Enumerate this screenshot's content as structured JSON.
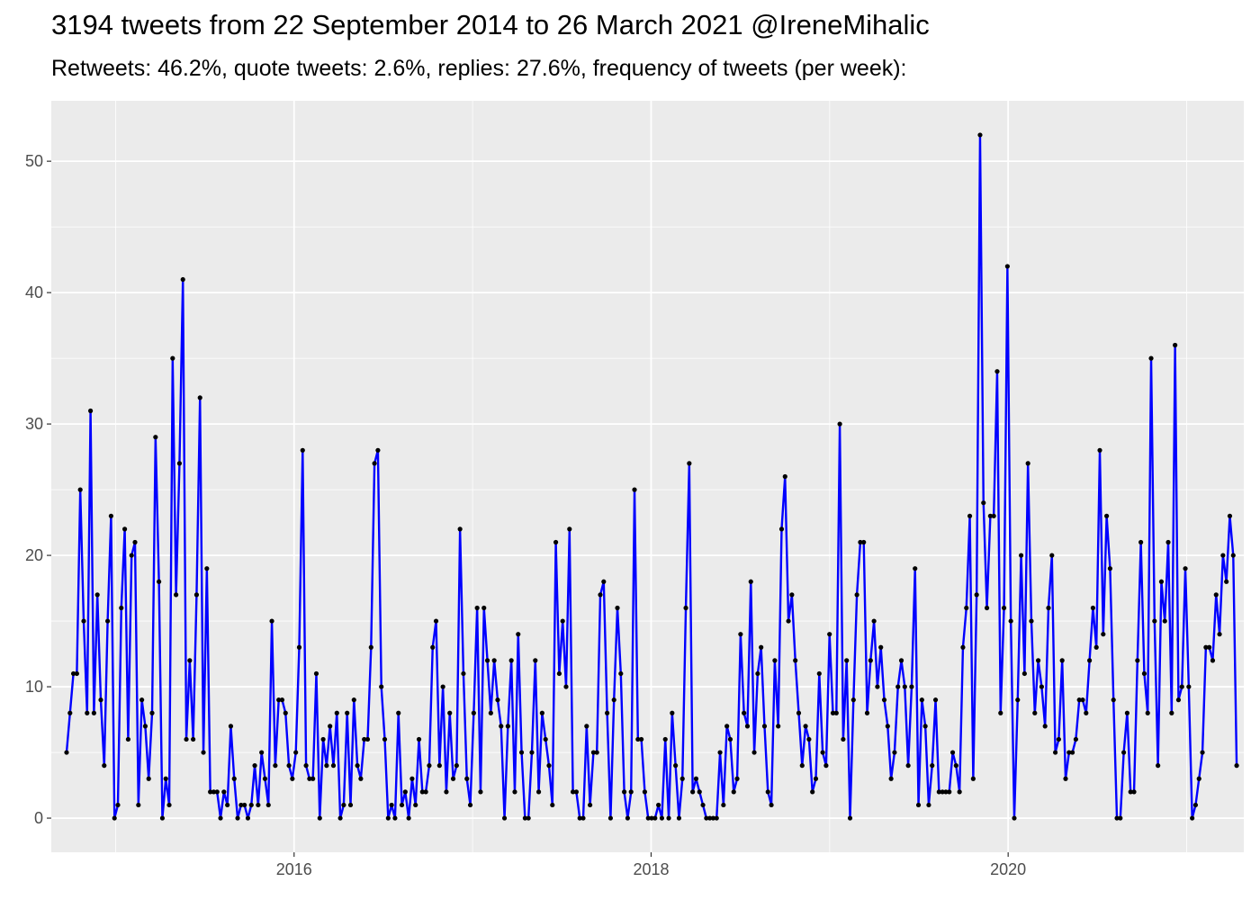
{
  "title": "3194 tweets from 22 September 2014 to 26 March 2021 @IreneMihalic",
  "subtitle": "Retweets: 46.2%, quote tweets: 2.6%, replies: 27.6%, frequency of tweets (per week):",
  "chart_data": {
    "type": "line",
    "xlabel": "",
    "ylabel": "",
    "xlim": [
      2014.64,
      2021.32
    ],
    "ylim": [
      -2.6,
      54.6
    ],
    "x_ticks": [
      2016,
      2018,
      2020
    ],
    "y_ticks": [
      0,
      10,
      20,
      30,
      40,
      50
    ],
    "x_start": 2014.7256,
    "x_step_weeks": 1,
    "grid": true,
    "panel_background": "#EBEBEB",
    "grid_color": "#FFFFFF",
    "line_color": "#0000FF",
    "point_color": "#000000",
    "series": [
      {
        "values": [
          5,
          8,
          11,
          11,
          25,
          15,
          8,
          31,
          8,
          17,
          9,
          4,
          15,
          23,
          0,
          1,
          16,
          22,
          6,
          20,
          21,
          1,
          9,
          7,
          3,
          8,
          29,
          18,
          0,
          3,
          1,
          35,
          17,
          27,
          41,
          6,
          12,
          6,
          17,
          32,
          5,
          19,
          2,
          2,
          2,
          0,
          2,
          1,
          7,
          3,
          0,
          1,
          1,
          0,
          1,
          4,
          1,
          5,
          3,
          1,
          15,
          4,
          9,
          9,
          8,
          4,
          3,
          5,
          13,
          28,
          4,
          3,
          3,
          11,
          0,
          6,
          4,
          7,
          4,
          8,
          0,
          1,
          8,
          1,
          9,
          4,
          3,
          6,
          6,
          13,
          27,
          28,
          10,
          6,
          0,
          1,
          0,
          8,
          1,
          2,
          0,
          3,
          1,
          6,
          2,
          2,
          4,
          13,
          15,
          4,
          10,
          2,
          8,
          3,
          4,
          22,
          11,
          3,
          1,
          8,
          16,
          2,
          16,
          12,
          8,
          12,
          9,
          7,
          0,
          7,
          12,
          2,
          14,
          5,
          0,
          0,
          5,
          12,
          2,
          8,
          6,
          4,
          1,
          21,
          11,
          15,
          10,
          22,
          2,
          2,
          0,
          0,
          7,
          1,
          5,
          5,
          17,
          18,
          8,
          0,
          9,
          16,
          11,
          2,
          0,
          2,
          25,
          6,
          6,
          2,
          0,
          0,
          0,
          1,
          0,
          6,
          0,
          8,
          4,
          0,
          3,
          16,
          27,
          2,
          3,
          2,
          1,
          0,
          0,
          0,
          0,
          5,
          1,
          7,
          6,
          2,
          3,
          14,
          8,
          7,
          18,
          5,
          11,
          13,
          7,
          2,
          1,
          12,
          7,
          22,
          26,
          15,
          17,
          12,
          8,
          4,
          7,
          6,
          2,
          3,
          11,
          5,
          4,
          14,
          8,
          8,
          30,
          6,
          12,
          0,
          9,
          17,
          21,
          21,
          8,
          12,
          15,
          10,
          13,
          9,
          7,
          3,
          5,
          10,
          12,
          10,
          4,
          10,
          19,
          1,
          9,
          7,
          1,
          4,
          9,
          2,
          2,
          2,
          2,
          5,
          4,
          2,
          13,
          16,
          23,
          3,
          17,
          52,
          24,
          16,
          23,
          23,
          34,
          8,
          16,
          42,
          15,
          0,
          9,
          20,
          11,
          27,
          15,
          8,
          12,
          10,
          7,
          16,
          20,
          5,
          6,
          12,
          3,
          5,
          5,
          6,
          9,
          9,
          8,
          12,
          16,
          13,
          28,
          14,
          23,
          19,
          9,
          0,
          0,
          5,
          8,
          2,
          2,
          12,
          21,
          11,
          8,
          35,
          15,
          4,
          18,
          15,
          21,
          8,
          36,
          9,
          10,
          19,
          10,
          0,
          1,
          3,
          5,
          13,
          13,
          12,
          17,
          14,
          20,
          18,
          23,
          20,
          4
        ]
      }
    ]
  }
}
